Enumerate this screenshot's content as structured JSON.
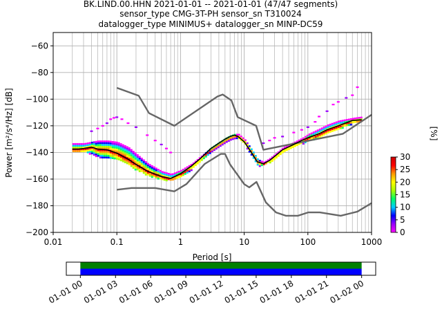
{
  "chart_data": [
    {
      "type": "heatmap",
      "title_lines": [
        "BK.LIND.00.HHN   2021-01-01 -- 2021-01-01  (47/47 segments)",
        "sensor_type CMG-3T-PH sensor_sn T310024",
        "datalogger_type MINIMUS+ datalogger_sn MINP-DC59"
      ],
      "xlabel": "Period [s]",
      "ylabel": "Power [m²/s⁴/Hz] [dB]",
      "xscale": "log",
      "xlim": [
        0.01,
        1000
      ],
      "ylim": [
        -200,
        -50
      ],
      "x_ticks": [
        {
          "v": 0.01,
          "label": "0.01"
        },
        {
          "v": 0.1,
          "label": "0.1"
        },
        {
          "v": 1,
          "label": "1"
        },
        {
          "v": 10,
          "label": "10"
        },
        {
          "v": 100,
          "label": "100"
        },
        {
          "v": 1000,
          "label": "1000"
        }
      ],
      "y_ticks": [
        {
          "v": -60,
          "label": "−60"
        },
        {
          "v": -80,
          "label": "−80"
        },
        {
          "v": -100,
          "label": "−100"
        },
        {
          "v": -120,
          "label": "−120"
        },
        {
          "v": -140,
          "label": "−140"
        },
        {
          "v": -160,
          "label": "−160"
        },
        {
          "v": -180,
          "label": "−180"
        },
        {
          "v": -200,
          "label": "−200"
        }
      ],
      "grid": true,
      "colorbar": {
        "label": "[%]",
        "range": [
          0,
          30
        ],
        "ticks": [
          {
            "v": 0,
            "label": "0"
          },
          {
            "v": 5,
            "label": "5"
          },
          {
            "v": 10,
            "label": "10"
          },
          {
            "v": 15,
            "label": "15"
          },
          {
            "v": 20,
            "label": "20"
          },
          {
            "v": 25,
            "label": "25"
          },
          {
            "v": 30,
            "label": "30"
          }
        ],
        "colors": [
          "#ff00ff",
          "#9900ff",
          "#0000ff",
          "#00ccff",
          "#00ff66",
          "#aaff00",
          "#ffff00",
          "#ff9900",
          "#ff0000",
          "#cc0000"
        ]
      },
      "series": [
        {
          "name": "",
          "style": "nhnm",
          "x": [
            0.1,
            0.22,
            0.32,
            0.8,
            3.8,
            4.6,
            6.3,
            7.9,
            15.4,
            20,
            354.8,
            10000
          ],
          "y": [
            -91.5,
            -97.4,
            -110.5,
            -120,
            -98,
            -96.5,
            -101,
            -113.5,
            -120,
            -138,
            -126,
            -80
          ]
        },
        {
          "name": "",
          "style": "nlnm",
          "x": [
            0.1,
            0.17,
            0.4,
            0.8,
            1.24,
            2.4,
            4.3,
            5,
            6,
            10,
            12,
            15.6,
            21.9,
            31.6,
            45,
            70,
            101,
            154,
            328,
            600,
            1000
          ],
          "y": [
            -168,
            -166.7,
            -166.7,
            -169.2,
            -163.7,
            -148.6,
            -141.1,
            -141.1,
            -149,
            -163.8,
            -166.2,
            -162.1,
            -177.5,
            -185,
            -187.5,
            -187.5,
            -185,
            -185,
            -187.5,
            -184.4,
            -178
          ]
        },
        {
          "name": "",
          "style": "mode",
          "x": [
            0.02,
            0.025,
            0.03,
            0.04,
            0.05,
            0.07,
            0.1,
            0.15,
            0.2,
            0.3,
            0.5,
            0.7,
            1,
            1.5,
            2,
            3,
            4,
            5,
            6,
            7,
            8,
            10,
            13,
            16,
            20,
            25,
            30,
            40,
            60,
            80,
            100,
            150,
            200,
            300,
            500,
            700
          ],
          "y": [
            -137.5,
            -137.5,
            -137,
            -136,
            -137.5,
            -138,
            -140.5,
            -145,
            -149,
            -154,
            -158,
            -159.5,
            -156,
            -150,
            -145,
            -137,
            -133,
            -130,
            -128,
            -127,
            -128,
            -132,
            -140,
            -147,
            -148.5,
            -146,
            -143,
            -138,
            -134,
            -131,
            -129,
            -126,
            -123,
            -120,
            -116,
            -115.5
          ]
        }
      ],
      "psd_band": {
        "x": [
          0.02,
          0.03,
          0.05,
          0.07,
          0.1,
          0.15,
          0.2,
          0.3,
          0.5,
          0.7,
          1,
          1.5,
          2,
          3,
          4,
          5,
          6,
          7,
          8,
          10,
          13,
          16,
          20,
          25,
          30,
          40,
          60,
          80,
          100,
          150,
          200,
          300,
          500,
          700
        ],
        "lo": [
          -139,
          -139,
          -143,
          -144,
          -145,
          -149,
          -153,
          -157,
          -160,
          -161,
          -158,
          -152,
          -147,
          -139,
          -135,
          -132,
          -130,
          -129,
          -129,
          -134,
          -143,
          -150,
          -149,
          -147,
          -145,
          -140,
          -136,
          -133,
          -131,
          -128,
          -125,
          -122,
          -118,
          -117
        ],
        "hi": [
          -133,
          -133,
          -131,
          -131,
          -132,
          -136,
          -141,
          -148,
          -154,
          -156,
          -153,
          -148,
          -143,
          -136,
          -132,
          -129,
          -127,
          -126,
          -126,
          -130,
          -138,
          -145,
          -147,
          -144,
          -141,
          -136,
          -132,
          -129,
          -126,
          -122,
          -119,
          -116,
          -114,
          -113
        ]
      },
      "outliers": {
        "x": [
          0.04,
          0.05,
          0.06,
          0.07,
          0.08,
          0.09,
          0.1,
          0.12,
          0.15,
          0.2,
          0.3,
          0.4,
          0.5,
          0.6,
          0.7,
          20,
          25,
          30,
          40,
          60,
          80,
          100,
          130,
          150,
          200,
          250,
          300,
          400,
          500,
          600
        ],
        "y": [
          -124,
          -122,
          -120,
          -118,
          -115,
          -114,
          -113.5,
          -115,
          -118,
          -121,
          -127,
          -131,
          -134,
          -137,
          -140,
          -133,
          -131,
          -129,
          -128,
          -125,
          -123,
          -121,
          -117,
          -113,
          -109,
          -104,
          -102,
          -99,
          -97,
          -91
        ]
      }
    },
    {
      "type": "bar",
      "x_ticks": [
        {
          "v": 0,
          "label": "01-01 00"
        },
        {
          "v": 3,
          "label": "01-01 03"
        },
        {
          "v": 6,
          "label": "01-01 06"
        },
        {
          "v": 9,
          "label": "01-01 09"
        },
        {
          "v": 12,
          "label": "01-01 12"
        },
        {
          "v": 15,
          "label": "01-01 15"
        },
        {
          "v": 18,
          "label": "01-01 18"
        },
        {
          "v": 21,
          "label": "01-01 21"
        },
        {
          "v": 24,
          "label": "01-02 00"
        }
      ],
      "xlim": [
        -1.2,
        25.2
      ],
      "coverage": [
        {
          "start": 0,
          "end": 24,
          "color": "#008000"
        },
        {
          "start": 0,
          "end": 24,
          "color": "#0000ff"
        }
      ]
    }
  ]
}
